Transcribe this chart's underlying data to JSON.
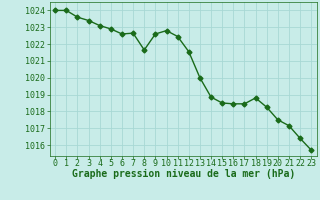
{
  "x": [
    0,
    1,
    2,
    3,
    4,
    5,
    6,
    7,
    8,
    9,
    10,
    11,
    12,
    13,
    14,
    15,
    16,
    17,
    18,
    19,
    20,
    21,
    22,
    23
  ],
  "y": [
    1024.0,
    1024.0,
    1023.6,
    1023.4,
    1023.1,
    1022.9,
    1022.6,
    1022.65,
    1021.65,
    1022.6,
    1022.8,
    1022.45,
    1021.55,
    1020.0,
    1018.85,
    1018.5,
    1018.45,
    1018.45,
    1018.8,
    1018.25,
    1017.5,
    1017.15,
    1016.4,
    1015.7
  ],
  "line_color": "#1a6b1a",
  "marker": "D",
  "markersize": 2.5,
  "linewidth": 1.0,
  "background_color": "#c8ece8",
  "grid_color": "#a8d8d4",
  "xlabel": "Graphe pression niveau de la mer (hPa)",
  "xlabel_color": "#1a6b1a",
  "xlabel_fontsize": 7.0,
  "tick_color": "#1a6b1a",
  "tick_fontsize": 6.0,
  "ylim": [
    1015.35,
    1024.5
  ],
  "xlim": [
    -0.5,
    23.5
  ],
  "yticks": [
    1016,
    1017,
    1018,
    1019,
    1020,
    1021,
    1022,
    1023,
    1024
  ],
  "xticks": [
    0,
    1,
    2,
    3,
    4,
    5,
    6,
    7,
    8,
    9,
    10,
    11,
    12,
    13,
    14,
    15,
    16,
    17,
    18,
    19,
    20,
    21,
    22,
    23
  ]
}
